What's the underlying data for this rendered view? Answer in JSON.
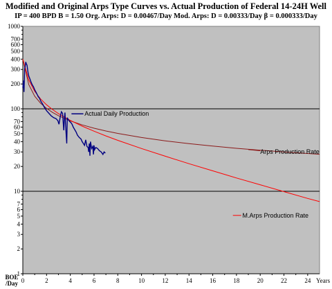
{
  "header": {
    "title": "Modified and Original Arps Type Curves vs. Actual Production of Federal 14-24H Well",
    "subtitle": "IP = 400 BPD B = 1.50  Org. Arps: D = 0.00467/Day  Mod. Arps: D = 0.00333/Day  β = 0.000333/Day"
  },
  "chart_data": {
    "type": "line",
    "title": "Modified and Original Arps Type Curves vs. Actual Production of Federal 14-24H Well",
    "ylabel": "BOE /Day",
    "xlabel": "Years",
    "y_scale": "log",
    "ylim": [
      1,
      1000
    ],
    "xlim": [
      0,
      25
    ],
    "y_tick_labels": [
      "1",
      "2",
      "3",
      "4",
      "5",
      "6",
      "7",
      "10",
      "20",
      "30",
      "40",
      "50",
      "60",
      "70",
      "100",
      "200",
      "300",
      "400",
      "500",
      "600",
      "700",
      "1000"
    ],
    "x_tick_labels": [
      "0",
      "2",
      "4",
      "6",
      "8",
      "10",
      "12",
      "14",
      "16",
      "18",
      "20",
      "22",
      "24"
    ],
    "grid": "horizontal lines at 10 and 100",
    "background": "#c0c0c0",
    "series": [
      {
        "name": "Actual Daily Production",
        "color": "#000080",
        "x": [
          0.0,
          0.05,
          0.1,
          0.15,
          0.2,
          0.25,
          0.3,
          0.35,
          0.4,
          0.45,
          0.5,
          0.6,
          0.7,
          0.8,
          0.9,
          1.0,
          1.1,
          1.2,
          1.3,
          1.4,
          1.5,
          1.6,
          1.7,
          1.8,
          1.9,
          2.0,
          2.2,
          2.4,
          2.6,
          2.8,
          2.95,
          3.05,
          3.15,
          3.25,
          3.35,
          3.4,
          3.45,
          3.5,
          3.55,
          3.6,
          3.65,
          3.7,
          3.75,
          3.85,
          3.95,
          4.05,
          4.15,
          4.25,
          4.4,
          4.5,
          4.6,
          4.75,
          4.9,
          5.0,
          5.1,
          5.2,
          5.3,
          5.4,
          5.5,
          5.55,
          5.6,
          5.65,
          5.7,
          5.8,
          5.9,
          5.95,
          6.0,
          6.05,
          6.15,
          6.3,
          6.45,
          6.6,
          6.75,
          6.85,
          6.95
        ],
        "y": [
          180,
          220,
          160,
          300,
          330,
          370,
          350,
          340,
          300,
          270,
          250,
          230,
          210,
          195,
          185,
          170,
          160,
          150,
          140,
          135,
          125,
          118,
          112,
          105,
          100,
          95,
          88,
          82,
          78,
          76,
          72,
          65,
          80,
          92,
          88,
          70,
          55,
          75,
          90,
          65,
          50,
          38,
          78,
          73,
          70,
          68,
          65,
          60,
          55,
          52,
          48,
          45,
          43,
          40,
          38,
          36,
          42,
          35,
          34,
          30,
          38,
          27,
          40,
          33,
          35,
          28,
          36,
          32,
          34,
          33,
          31,
          30,
          28,
          30,
          29
        ]
      },
      {
        "name": "Arps Production Rate",
        "color": "#8b1a1a",
        "formula": "q = 400 / (1 + 1.5*0.00467*t_days)^(1/1.5)",
        "x": [
          0,
          0.5,
          1,
          1.5,
          2,
          2.5,
          3,
          4,
          5,
          6,
          7,
          8,
          10,
          12,
          14,
          16,
          18,
          20,
          22,
          24,
          25
        ],
        "y": [
          400,
          196.5,
          142.2,
          116.7,
          101.2,
          90.5,
          82.6,
          71.4,
          63.8,
          58.2,
          53.8,
          50.3,
          44.9,
          40.9,
          37.8,
          35.3,
          33.2,
          31.5,
          30.0,
          28.7,
          28.1
        ]
      },
      {
        "name": "M.Arps Production Rate",
        "color": "#ff0000",
        "x": [
          0,
          0.5,
          1,
          1.5,
          2,
          2.5,
          3,
          4,
          5,
          6,
          7,
          8,
          10,
          12,
          14,
          16,
          18,
          20,
          22,
          24,
          25
        ],
        "y": [
          400,
          223.5,
          162.6,
          131.6,
          111.9,
          98.1,
          87.5,
          72.4,
          61.7,
          53.5,
          46.9,
          41.5,
          33.0,
          26.6,
          21.6,
          17.7,
          14.5,
          12.0,
          9.9,
          8.2,
          7.5
        ]
      }
    ],
    "series_labels": {
      "actual": "Actual Daily Production",
      "arps": "Arps Production Rate",
      "marps": "M.Arps Production Rate"
    }
  }
}
